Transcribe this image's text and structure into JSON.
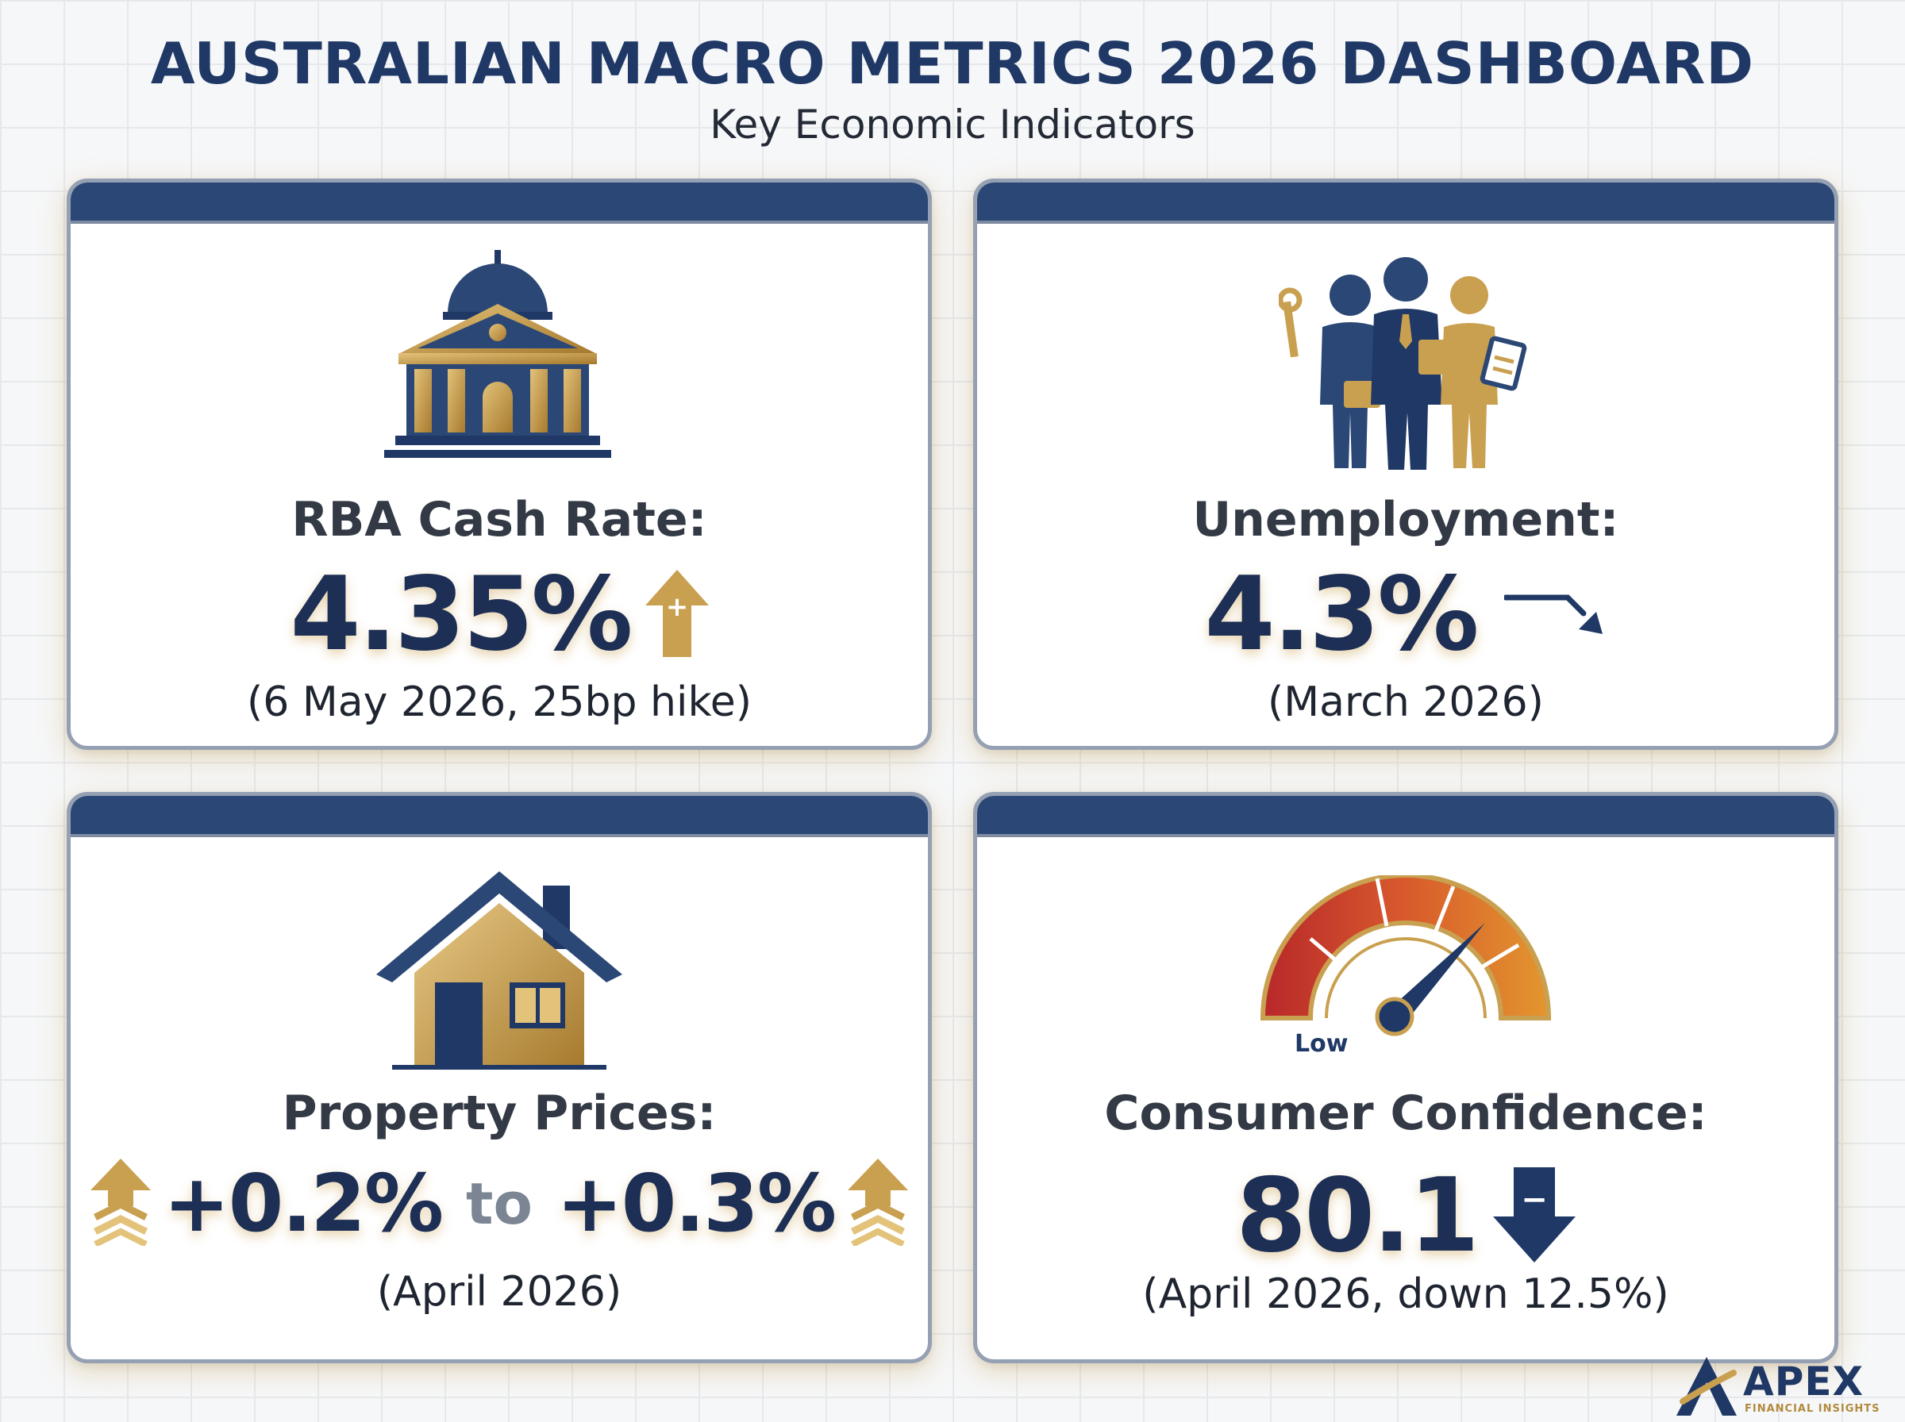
{
  "header": {
    "title": "AUSTRALIAN MACRO METRICS 2026 DASHBOARD",
    "subtitle": "Key Economic Indicators"
  },
  "cards": [
    {
      "label": "RBA Cash Rate:",
      "value": "4.35%",
      "note": "(6 May 2026, 25bp hike)",
      "icon": "bank-building-icon",
      "trend": "up",
      "trend_icon_text": "+"
    },
    {
      "label": "Unemployment:",
      "value": "4.3%",
      "note": "(March 2026)",
      "icon": "workers-icon",
      "trend": "down"
    },
    {
      "label": "Property Prices:",
      "value_low": "+0.2%",
      "connector": "to",
      "value_high": "+0.3%",
      "note": "(April 2026)",
      "icon": "house-icon",
      "trend": "up"
    },
    {
      "label": "Consumer Confidence:",
      "value": "80.1",
      "note": "(April 2026, down 12.5%)",
      "icon": "gauge-icon",
      "gauge_label": "Low",
      "trend": "down",
      "trend_icon_text": "−"
    }
  ],
  "logo": {
    "name": "APEX",
    "tagline": "FINANCIAL INSIGHTS"
  },
  "colors": {
    "navy": "#1d2f55",
    "navy_bar": "#2b4775",
    "gold": "#c9a050",
    "text_dark": "#333a45",
    "muted": "#7c8594"
  }
}
